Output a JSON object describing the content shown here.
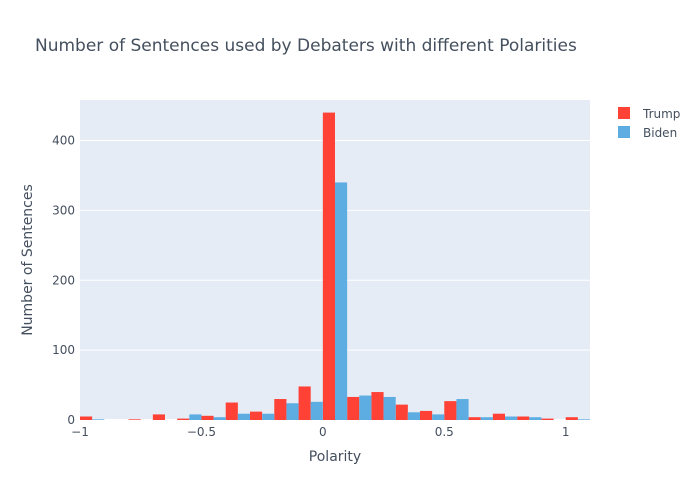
{
  "chart_data": {
    "type": "bar",
    "title": "Number of Sentences used by Debaters with different Polarities",
    "xlabel": "Polarity",
    "ylabel": "Number of Sentences",
    "xlim": [
      -1.0,
      1.1
    ],
    "ylim": [
      0,
      458
    ],
    "x_ticks": [
      -1,
      -0.5,
      0,
      0.5,
      1
    ],
    "x_tick_labels": [
      "−1",
      "−0.5",
      "0",
      "0.5",
      "1"
    ],
    "y_ticks": [
      0,
      100,
      200,
      300,
      400
    ],
    "y_tick_labels": [
      "0",
      "100",
      "200",
      "300",
      "400"
    ],
    "bin_width": 0.1,
    "x": [
      -0.95,
      -0.85,
      -0.75,
      -0.65,
      -0.55,
      -0.45,
      -0.35,
      -0.25,
      -0.15,
      -0.05,
      0.05,
      0.15,
      0.25,
      0.35,
      0.45,
      0.55,
      0.65,
      0.75,
      0.85,
      0.95,
      1.05
    ],
    "series": [
      {
        "name": "Trump",
        "color": "#ff4136",
        "values": [
          5,
          0,
          1,
          8,
          2,
          6,
          25,
          12,
          30,
          48,
          440,
          33,
          40,
          22,
          13,
          27,
          4,
          9,
          5,
          2,
          4
        ]
      },
      {
        "name": "Biden",
        "color": "#5dade2",
        "values": [
          1,
          0,
          0,
          0,
          8,
          4,
          9,
          9,
          24,
          26,
          340,
          35,
          33,
          11,
          8,
          30,
          4,
          5,
          4,
          0,
          1
        ]
      }
    ],
    "grid": true,
    "legend_position": "top-right",
    "plot_bg": "#e5ecf6"
  }
}
